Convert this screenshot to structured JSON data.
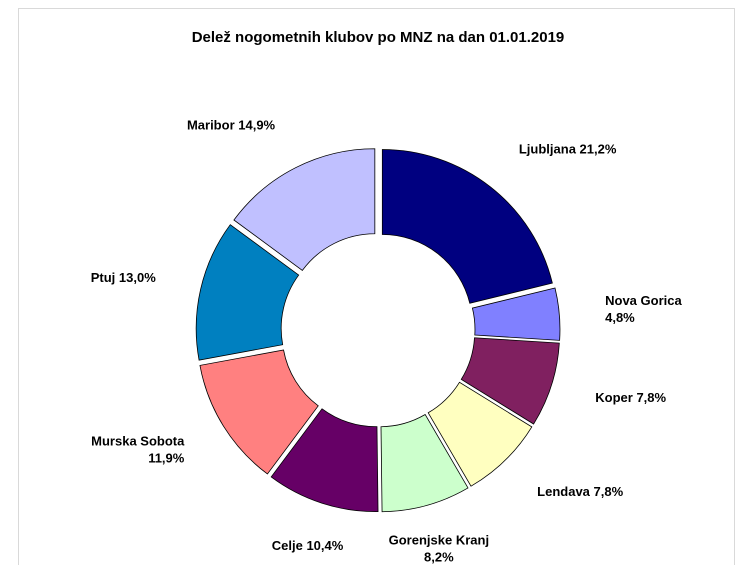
{
  "chart_data": {
    "type": "donut",
    "title": "Delež nogometnih klubov po MNZ na dan 01.01.2019",
    "categories": [
      "Ljubljana",
      "Nova Gorica",
      "Koper",
      "Lendava",
      "Gorenjske Kranj",
      "Celje",
      "Murska Sobota",
      "Ptuj",
      "Maribor"
    ],
    "values": [
      21.2,
      4.8,
      7.8,
      7.8,
      8.2,
      10.4,
      11.9,
      13.0,
      14.9
    ],
    "value_labels": [
      "21,2%",
      "4,8%",
      "7,8%",
      "7,8%",
      "8,2%",
      "10,4%",
      "11,9%",
      "13,0%",
      "14,9%"
    ],
    "colors": [
      "#000080",
      "#8080ff",
      "#802060",
      "#ffffc0",
      "#ccffcc",
      "#660066",
      "#ff8080",
      "#0080c0",
      "#c0c0ff"
    ]
  }
}
